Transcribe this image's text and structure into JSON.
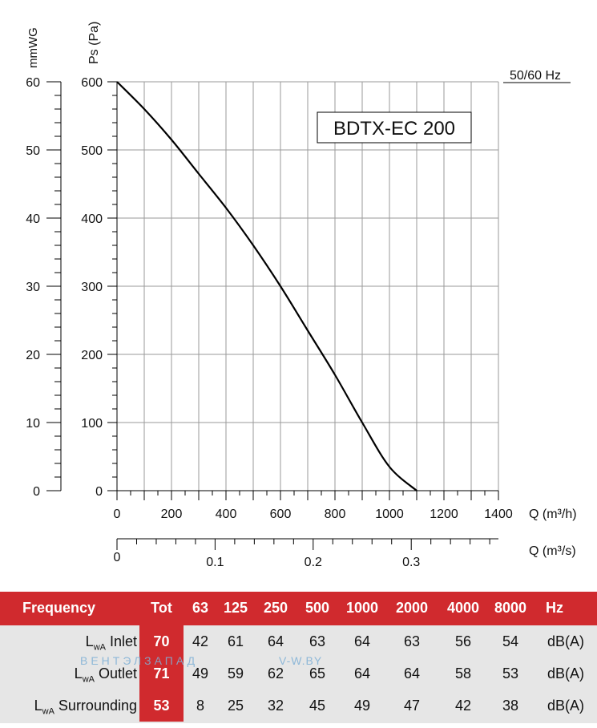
{
  "chart_data": {
    "type": "line",
    "title": "BDTX-EC 200",
    "frequency_note": "50/60 Hz",
    "left_axis_label": "mmWG",
    "ylabel": "Ps (Pa)",
    "xlabel": "Q (m³/h)",
    "x2label": "Q (m³/s)",
    "xlim": [
      0,
      1400
    ],
    "ylim": [
      0,
      600
    ],
    "y2lim": [
      0,
      60
    ],
    "x_ticks": [
      "0",
      "200",
      "400",
      "600",
      "800",
      "1000",
      "1200",
      "1400"
    ],
    "y_ticks": [
      "0",
      "100",
      "200",
      "300",
      "400",
      "500",
      "600"
    ],
    "y2_ticks": [
      "0",
      "10",
      "20",
      "30",
      "40",
      "50",
      "60"
    ],
    "x2_ticks": [
      "0",
      "0.1",
      "0.2",
      "0.3"
    ],
    "grid": true,
    "series": [
      {
        "x": [
          0,
          100,
          200,
          300,
          400,
          500,
          600,
          700,
          800,
          900,
          1000,
          1100
        ],
        "y": [
          600,
          560,
          515,
          465,
          415,
          360,
          300,
          235,
          170,
          100,
          35,
          0
        ]
      }
    ]
  },
  "table": {
    "header": {
      "frequency": "Frequency",
      "tot": "Tot",
      "bands": [
        "63",
        "125",
        "250",
        "500",
        "1000",
        "2000",
        "4000",
        "8000"
      ],
      "unit": "Hz"
    },
    "rows": [
      {
        "lw": "L",
        "sub": "wA",
        "name": "Inlet",
        "tot": "70",
        "values": [
          "42",
          "61",
          "64",
          "63",
          "64",
          "63",
          "56",
          "54"
        ],
        "unit": "dB(A)"
      },
      {
        "lw": "L",
        "sub": "wA",
        "name": "Outlet",
        "tot": "71",
        "values": [
          "49",
          "59",
          "62",
          "65",
          "64",
          "64",
          "58",
          "53"
        ],
        "unit": "dB(A)"
      },
      {
        "lw": "L",
        "sub": "wA",
        "name": "Surrounding",
        "tot": "53",
        "values": [
          "8",
          "25",
          "32",
          "45",
          "49",
          "47",
          "42",
          "38"
        ],
        "unit": "dB(A)"
      }
    ]
  },
  "watermark": {
    "left": "ВЕНТЭЛЗАПАД",
    "right": "V-W.BY"
  }
}
